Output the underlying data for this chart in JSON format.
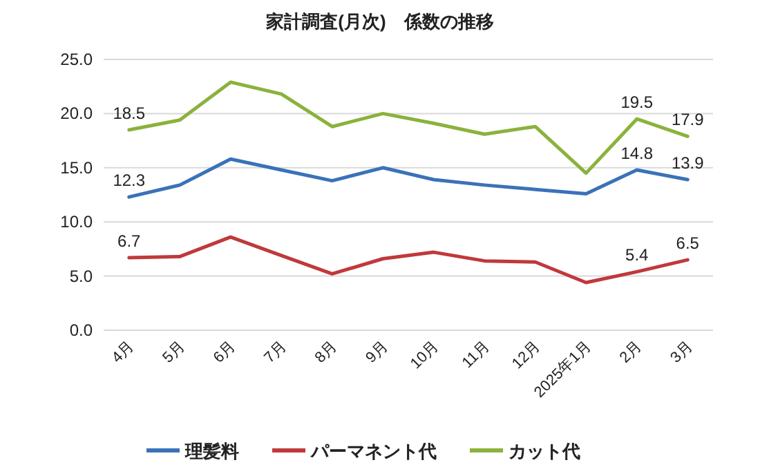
{
  "chart_data": {
    "type": "line",
    "title": "家計調査(月次)　係数の推移",
    "categories": [
      "4月",
      "5月",
      "6月",
      "7月",
      "8月",
      "9月",
      "10月",
      "11月",
      "12月",
      "2025年1月",
      "2月",
      "3月"
    ],
    "series": [
      {
        "name": "理髪料",
        "color": "#3a72b8",
        "values": [
          12.3,
          13.4,
          15.8,
          14.8,
          13.8,
          15.0,
          13.9,
          13.4,
          13.0,
          12.6,
          14.8,
          13.9
        ],
        "value_labels": [
          "12.3",
          null,
          null,
          null,
          null,
          null,
          null,
          null,
          null,
          null,
          "14.8",
          "13.9"
        ]
      },
      {
        "name": "パーマネント代",
        "color": "#c0393b",
        "values": [
          6.7,
          6.8,
          8.6,
          6.9,
          5.2,
          6.6,
          7.2,
          6.4,
          6.3,
          4.4,
          5.4,
          6.5
        ],
        "value_labels": [
          "6.7",
          null,
          null,
          null,
          null,
          null,
          null,
          null,
          null,
          null,
          "5.4",
          "6.5"
        ]
      },
      {
        "name": "カット代",
        "color": "#8bb23c",
        "values": [
          18.5,
          19.4,
          22.9,
          21.8,
          18.8,
          20.0,
          19.1,
          18.1,
          18.8,
          14.5,
          19.5,
          17.9
        ],
        "value_labels": [
          "18.5",
          null,
          null,
          null,
          null,
          null,
          null,
          null,
          null,
          null,
          "19.5",
          "17.9"
        ]
      }
    ],
    "ylim": [
      0,
      25
    ],
    "yticks": [
      {
        "value": 0,
        "label": "0.0"
      },
      {
        "value": 5,
        "label": "5.0"
      },
      {
        "value": 10,
        "label": "10.0"
      },
      {
        "value": 15,
        "label": "15.0"
      },
      {
        "value": 20,
        "label": "20.0"
      },
      {
        "value": 25,
        "label": "25.0"
      }
    ],
    "grid": "y",
    "legend": "bottom",
    "marker": "none",
    "line_style": "solid"
  }
}
